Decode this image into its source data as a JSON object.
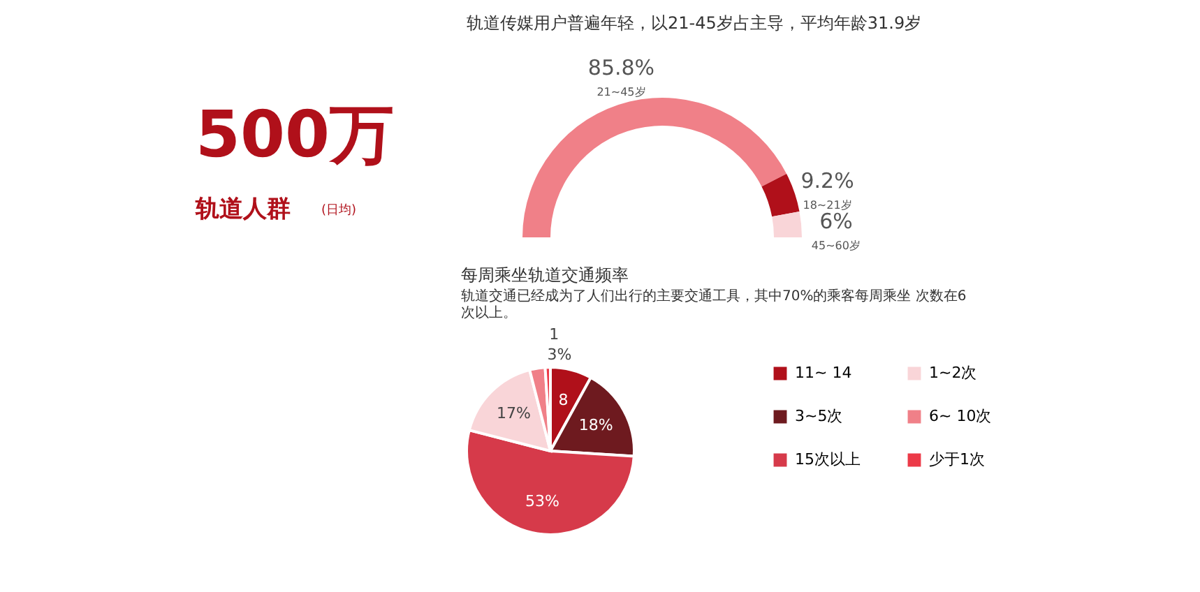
{
  "chart_data": [
    {
      "type": "other",
      "title": "500万",
      "annotations": [
        "轨道人群",
        "(日均)"
      ],
      "color": "#b0101a"
    },
    {
      "type": "donut",
      "title": "轨道传媒用户普遍年轻，以21-45岁占主导，平均年龄31.9岁",
      "categories": [
        "21~45岁",
        "18~21岁",
        "45~60岁"
      ],
      "values": [
        85.8,
        9.2,
        6
      ],
      "colors": [
        "#f08088",
        "#b0101a",
        "#f9d5d8"
      ],
      "value_labels": [
        "85.8%",
        "9.2%",
        "6%"
      ],
      "legend": false
    },
    {
      "type": "pie",
      "title": "每周乘坐轨道交通频率",
      "subtitle": "轨道交通已经成为了人们出行的主要交通工具，其中70%的乘客每周乘坐 次数在6次以上。",
      "categories": [
        "11~ 14",
        "3~5次",
        "15次以上",
        "1~2次",
        "6~ 10次",
        "少于1次"
      ],
      "values": [
        8,
        18,
        53,
        17,
        3,
        1
      ],
      "colors": [
        "#b0101a",
        "#6e1a1f",
        "#d63a4a",
        "#f9d5d8",
        "#f08088",
        "#ec3a48"
      ],
      "value_labels": [
        "8",
        "18%",
        "53%",
        "17%",
        "3%",
        "1"
      ],
      "legend": "right"
    }
  ]
}
